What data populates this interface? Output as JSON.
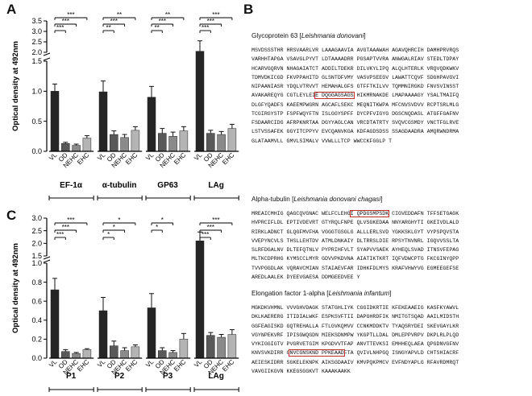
{
  "panels": {
    "A": "A",
    "B": "B",
    "C": "C"
  },
  "colors": {
    "VL": "#252525",
    "OD": "#595959",
    "NEHC": "#8a8a8a",
    "EHC": "#b4b4b4",
    "highlight": "#c0302a"
  },
  "chart_data": [
    {
      "panel": "A",
      "type": "bar",
      "ylabel": "Optical density at 492nm",
      "axis_break": {
        "lower": [
          0,
          1.5
        ],
        "upper": [
          2.0,
          3.5
        ]
      },
      "yticks_lower": [
        "0.0",
        "0.5",
        "1.0",
        "1.5"
      ],
      "yticks_upper": [
        "2.0",
        "2.5",
        "3.0",
        "3.5"
      ],
      "series_names": [
        "VL",
        "OD",
        "NEHC",
        "EHC"
      ],
      "groups": [
        {
          "label": "EF-1α",
          "values": [
            1.0,
            0.13,
            0.1,
            0.22
          ],
          "errors": [
            0.12,
            0.02,
            0.02,
            0.04
          ],
          "sig": [
            {
              "to": 3,
              "text": "***"
            },
            {
              "to": 2,
              "text": "***"
            },
            {
              "to": 1,
              "text": "***"
            }
          ]
        },
        {
          "label": "α-tubulin",
          "values": [
            0.99,
            0.28,
            0.23,
            0.35
          ],
          "errors": [
            0.18,
            0.06,
            0.05,
            0.06
          ],
          "sig": [
            {
              "to": 3,
              "text": "**"
            },
            {
              "to": 2,
              "text": "***"
            },
            {
              "to": 1,
              "text": "**"
            }
          ]
        },
        {
          "label": "GP63",
          "values": [
            0.9,
            0.3,
            0.25,
            0.34
          ],
          "errors": [
            0.18,
            0.08,
            0.07,
            0.07
          ],
          "sig": [
            {
              "to": 3,
              "text": "**"
            },
            {
              "to": 2,
              "text": "***"
            },
            {
              "to": 1,
              "text": "**"
            }
          ]
        },
        {
          "label": "LAg",
          "values": [
            2.05,
            0.3,
            0.28,
            0.38
          ],
          "errors": [
            0.5,
            0.05,
            0.05,
            0.07
          ],
          "sig": [
            {
              "to": 3,
              "text": "***"
            },
            {
              "to": 2,
              "text": "***"
            },
            {
              "to": 1,
              "text": "***"
            }
          ]
        }
      ]
    },
    {
      "panel": "C",
      "type": "bar",
      "ylabel": "Optical density at 492nm",
      "axis_break": {
        "lower": [
          0,
          1.0
        ],
        "upper": [
          1.5,
          3.0
        ]
      },
      "yticks_lower": [
        "0.0",
        "0.2",
        "0.4",
        "0.6",
        "0.8",
        "1.0"
      ],
      "yticks_upper": [
        "1.5",
        "2.0",
        "2.5",
        "3.0"
      ],
      "series_names": [
        "VL",
        "OD",
        "NEHC",
        "EHC"
      ],
      "groups": [
        {
          "label": "P1",
          "values": [
            0.72,
            0.07,
            0.05,
            0.09
          ],
          "errors": [
            0.12,
            0.02,
            0.01,
            0.01
          ],
          "sig": [
            {
              "to": 3,
              "text": "***"
            },
            {
              "to": 2,
              "text": "***"
            },
            {
              "to": 1,
              "text": "***"
            }
          ]
        },
        {
          "label": "P2",
          "values": [
            0.5,
            0.13,
            0.08,
            0.12
          ],
          "errors": [
            0.14,
            0.05,
            0.03,
            0.02
          ],
          "sig": [
            {
              "to": 3,
              "text": "*"
            },
            {
              "to": 2,
              "text": "*"
            },
            {
              "to": 1,
              "text": "*"
            }
          ]
        },
        {
          "label": "P3",
          "values": [
            0.53,
            0.08,
            0.06,
            0.2
          ],
          "errors": [
            0.15,
            0.03,
            0.02,
            0.06
          ],
          "sig": [
            {
              "to": 2,
              "text": "*"
            },
            {
              "to": 1,
              "text": "*"
            }
          ]
        },
        {
          "label": "LAg",
          "values": [
            2.1,
            0.24,
            0.22,
            0.25
          ],
          "errors": [
            0.35,
            0.03,
            0.03,
            0.05
          ],
          "sig": [
            {
              "to": 3,
              "text": "***"
            },
            {
              "to": 2,
              "text": "***"
            },
            {
              "to": 1,
              "text": "***"
            }
          ]
        }
      ]
    }
  ],
  "sequences": [
    {
      "name": "Glycoprotein 63 [",
      "species": "Leishmania donovani",
      "close": "]",
      "lines": [
        {
          "text": "MSVDSSSTHR HRSVAARLVR LAAAGAAVIA AVGTAAAWAH AGAVQHRCIH DAMHPRVRQS"
        },
        {
          "text": "VARHHTAPGA VSAVGLPYVT LDTAAAADRR PGSAPTVVRA ANWGALRIAV STEDLTDPAY"
        },
        {
          "text": "HCARVGQRVN NHAGAIATCT ADDILTDEKR DILVKYLIPQ ALQLHTERLK VRQVQDKWKV"
        },
        {
          "text": "TDMVDKICGD FKVPPAHITD GLSNTDFVMY VASVPSEEGV LAWATTCQVF SDGHPAVGVI"
        },
        {
          "text": "NIPAANIASR YDQLVTRVVT HEMAHALGFS GTFFTKILVV TQMMNIRGKD FNVSVINSST"
        },
        {
          "pre": "AVAKAREQYG CGTLEYLEI",
          "hl": "E DQGGAGSAGS",
          "post": " HIKMRNAKDE LMAPAAAAGY YSALTMAIFQ"
        },
        {
          "text": "DLGFYQADFS KAEEMPWGRN AGCAFLSEKC MEQNITKWPA MFCNVSVDVV RCPTSRLMLG"
        },
        {
          "text": "TCGIRGYSTP FSPFWQYFTN ISLGGYSPFF DYCPFVIGYG DGSCNQDASL ATGFFGAFNV"
        },
        {
          "text": "FSDAARCIDG AFRPKNRTAA DGYYAGLCAN VRCDTATRTY SVQVCGSMDY VNCTFGLRVE"
        },
        {
          "text": "LSTVSSAFEK GGYITCPPYV EVCQANVKGA KDFAGDSDSS SSAGDAADRA AMQRWNDRMA"
        },
        {
          "text": "GLATAAMVLL GMVLSIMALV VVWLLLTCP WWCCKFGGLP T"
        }
      ]
    },
    {
      "name": "Alpha-tubulin [",
      "species": "Leishmania donovani chagasi",
      "close": "]",
      "lines": [
        {
          "pre": "MREAICMHIG QAGCQVGNAC WELFCLEHG",
          "hl": "I QPDGSMPSDK",
          "post": " CIGVEDDAFN TFFSETGAGK"
        },
        {
          "text": "HVPRCIFLDL EPTIVDEVRT GTYRQLFNPE QLVSGKEDAA NNYARGHYTI GKEIVDLALD"
        },
        {
          "text": "RIRKLADNCT GLQGFMVFHA VGGGTGSGLG ALLLERLSVD YGKKSKLGYT VYPSPQVSTA"
        },
        {
          "text": "VVEPYNCVLS THSLLEHTDV ATMLDNKAIY DLTRRSLDIE RPSYTNVNRL IGQVVSSLTA"
        },
        {
          "text": "SLRFDGALNV DLTEFQTNLV PYPRIHFVLT SYAPVVSAEK AYHEQLSVAD ITNSVFEPAG"
        },
        {
          "text": "MLTKCDPRHG KYMSCCLMYR GDVVPKDVNA AIATIKTKRT IQFVDWCPTG FKCGINYQPP"
        },
        {
          "text": "TVVPGGDLAK VQRAVCMIAN STAIAEVFAR IDHKFDLMYS KRAFVHWYVG EGMEEGEFSE"
        },
        {
          "text": "AREDLAALEK DYEEVGAESA DDMGEEDVEE Y"
        }
      ]
    },
    {
      "name": "Elongation factor 1-alpha [",
      "species": "Leishmania infantum",
      "close": "]",
      "lines": [
        {
          "text": "MGKDKVHMNL VVVGHVDAGK STATGHLIYK CGGIDKRTIE KFEKEAAEIG KASFKYAWVL"
        },
        {
          "text": "DKLKAERERG ITIDIALWKF ESPKSVFTII DAPGHRDFIK NMITGTSQAD AAILMIDSTH"
        },
        {
          "text": "GGFEAGISKD GQTREHALLA FTLGVKQMVV CCNKMDDKTV TYAQSRYDEI SKEVGAYLKR"
        },
        {
          "text": "VGYNPEKVRF IPISGWQGDN MIEKSDNMPW YKGPTLLDAL DMLEPPVRPV DKPLRLPLQD"
        },
        {
          "text": "VYKIGGIGTV PVGRVETGIM KPGDVVTFAP ANVTTEVKSI EMHHEQLAEA QPGDNVGFNV"
        },
        {
          "pre": "KNVSVKDIRR G",
          "hl": "NVCGNSKND PPKEAAD",
          "post": "FTA QVIVLNHPGQ ISNGYAPVLD CHTSHIACRF"
        },
        {
          "text": "AEIESKIDRR SGKELEKNPK AIKSGDAAIV KMVPQKPMCV EVFNDYAPLG RFAVRDMRQT"
        },
        {
          "text": "VAVGIIKGVN KKEGSGGKVT KAAAKAAKK"
        }
      ]
    }
  ]
}
